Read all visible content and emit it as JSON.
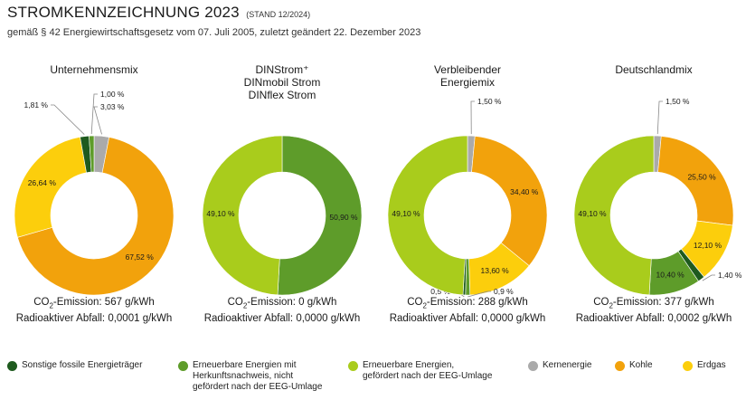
{
  "header": {
    "title": "STROMKENNZEICHNUNG 2023",
    "title_suffix": "(STAND 12/2024)",
    "subtitle": "gemäß § 42 Energiewirtschaftsgesetz vom  07. Juli 2005, zuletzt geändert 22. Dezember 2023"
  },
  "colors": {
    "sonstige": "#1e5a1e",
    "herkunft": "#5e9c2a",
    "eeg": "#a9cc1c",
    "kern": "#aaaaaa",
    "kohle": "#f2a20c",
    "erdgas": "#fcce0c"
  },
  "chart_data": [
    {
      "type": "pie",
      "title": "Unternehmensmix",
      "slices": [
        {
          "key": "kern",
          "value": 3.03,
          "label": "3,03 %"
        },
        {
          "key": "kohle",
          "value": 67.52,
          "label": "67,52 %"
        },
        {
          "key": "erdgas",
          "value": 26.64,
          "label": "26,64 %"
        },
        {
          "key": "sonstige",
          "value": 1.81,
          "label": "1,81 %"
        },
        {
          "key": "herkunft",
          "value": 1.0,
          "label": "1,00 %"
        }
      ],
      "co2_label": "CO",
      "co2_sub": "2",
      "co2_text": "-Emission: 567 g/kWh",
      "waste_text": "Radioaktiver Abfall: 0,0001 g/kWh"
    },
    {
      "type": "pie",
      "title": "DINStrom⁺\nDINmobil Strom\nDINflex Strom",
      "slices": [
        {
          "key": "herkunft",
          "value": 50.9,
          "label": "50,90 %"
        },
        {
          "key": "eeg",
          "value": 49.1,
          "label": "49,10 %"
        }
      ],
      "co2_label": "CO",
      "co2_sub": "2",
      "co2_text": "-Emission: 0 g/kWh",
      "waste_text": "Radioaktiver Abfall: 0,0000 g/kWh"
    },
    {
      "type": "pie",
      "title": "Verbleibender\nEnergiemix",
      "slices": [
        {
          "key": "kern",
          "value": 1.5,
          "label": "1,50 %"
        },
        {
          "key": "kohle",
          "value": 34.4,
          "label": "34,40 %"
        },
        {
          "key": "erdgas",
          "value": 13.6,
          "label": "13,60 %"
        },
        {
          "key": "herkunft",
          "value": 0.9,
          "label": "0,9 %"
        },
        {
          "key": "sonstige",
          "value": 0.5,
          "label": "0,5 %"
        },
        {
          "key": "eeg",
          "value": 49.1,
          "label": "49,10 %"
        }
      ],
      "co2_label": "CO",
      "co2_sub": "2",
      "co2_text": "-Emission: 288 g/kWh",
      "waste_text": "Radioaktiver Abfall: 0,0000 g/kWh"
    },
    {
      "type": "pie",
      "title": "Deutschlandmix",
      "slices": [
        {
          "key": "kern",
          "value": 1.5,
          "label": "1,50 %"
        },
        {
          "key": "kohle",
          "value": 25.5,
          "label": "25,50 %"
        },
        {
          "key": "erdgas",
          "value": 12.1,
          "label": "12,10 %"
        },
        {
          "key": "sonstige",
          "value": 1.4,
          "label": "1,40 %"
        },
        {
          "key": "herkunft",
          "value": 10.4,
          "label": "10,40 %"
        },
        {
          "key": "eeg",
          "value": 49.1,
          "label": "49,10 %"
        }
      ],
      "co2_label": "CO",
      "co2_sub": "2",
      "co2_text": "-Emission: 377 g/kWh",
      "waste_text": "Radioaktiver Abfall: 0,0002 g/kWh"
    }
  ],
  "legend": [
    {
      "key": "sonstige",
      "label": "Sonstige fossile Energieträger"
    },
    {
      "key": "herkunft",
      "label": "Erneuerbare Energien mit\nHerkunftsnachweis, nicht\ngefördert nach der EEG-Umlage"
    },
    {
      "key": "eeg",
      "label": "Erneuerbare Energien,\ngefördert nach der EEG-Umlage"
    },
    {
      "key": "kern",
      "label": "Kernenergie"
    },
    {
      "key": "kohle",
      "label": "Kohle"
    },
    {
      "key": "erdgas",
      "label": "Erdgas"
    }
  ]
}
